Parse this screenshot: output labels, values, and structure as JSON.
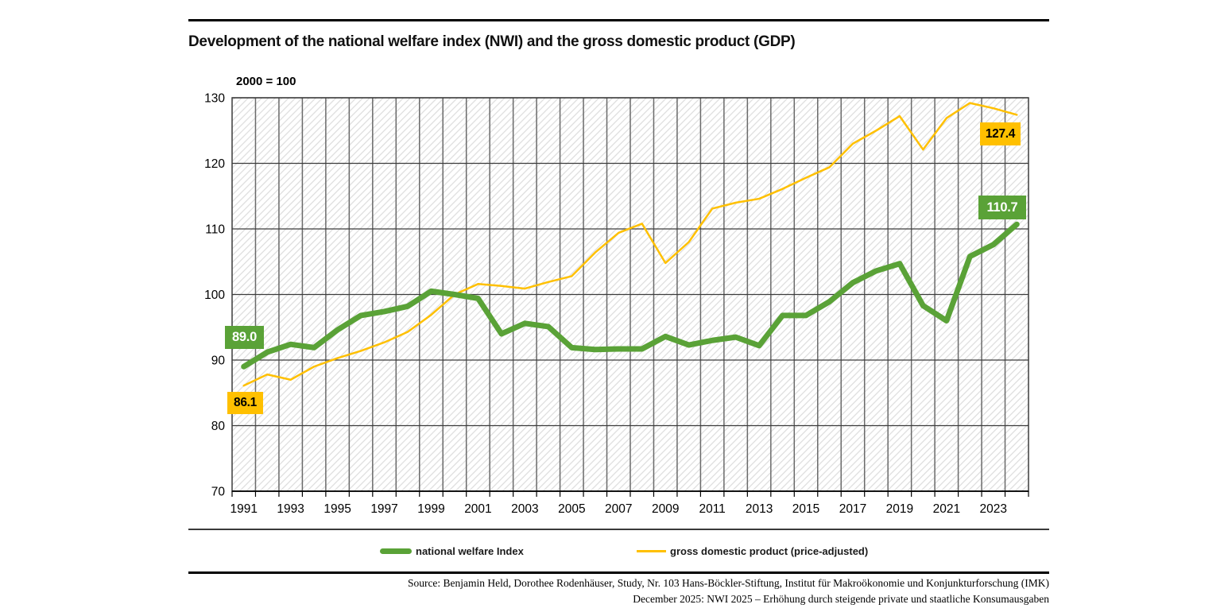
{
  "header": {
    "title": "Development of the national welfare index (NWI) and the gross domestic product (GDP)"
  },
  "colors": {
    "nwi_green": "#5AA237",
    "gdp_gold": "#FFC000",
    "grid_vertical": "#6a6a6a",
    "grid_horizontal": "#3c3c3c",
    "hatch": "#dcdcdc"
  },
  "chart_data": {
    "type": "line",
    "title": "Development of the national welfare index (NWI) and the gross domestic product (GDP)",
    "index_note": "2000 = 100",
    "xlabel": "",
    "ylabel": "",
    "ylim": [
      70,
      130
    ],
    "yticks": [
      70,
      80,
      90,
      100,
      110,
      120,
      130
    ],
    "grid": "on",
    "legend_position": "bottom",
    "x": [
      1991,
      1992,
      1993,
      1994,
      1995,
      1996,
      1997,
      1998,
      1999,
      2000,
      2001,
      2002,
      2003,
      2004,
      2005,
      2006,
      2007,
      2008,
      2009,
      2010,
      2011,
      2012,
      2013,
      2014,
      2015,
      2016,
      2017,
      2018,
      2019,
      2020,
      2021,
      2022,
      2023,
      2024
    ],
    "x_tick_labels": [
      "1991",
      "1993",
      "1995",
      "1997",
      "1999",
      "2001",
      "2003",
      "2005",
      "2007",
      "2009",
      "2011",
      "2013",
      "2015",
      "2017",
      "2019",
      "2021",
      "2023"
    ],
    "series": [
      {
        "name": "national welfare Index",
        "color": "#5AA237",
        "stroke_width": 7,
        "values": [
          89.0,
          91.2,
          92.4,
          91.9,
          94.6,
          96.8,
          97.4,
          98.2,
          100.5,
          100.0,
          99.4,
          94.0,
          95.6,
          95.1,
          91.9,
          91.6,
          91.7,
          91.7,
          93.6,
          92.3,
          93.0,
          93.5,
          92.2,
          96.8,
          96.8,
          98.9,
          101.8,
          103.6,
          104.7,
          98.3,
          96.0,
          105.8,
          107.6,
          110.7
        ]
      },
      {
        "name": "gross domestic product (price-adjusted)",
        "color": "#FFC000",
        "stroke_width": 2.5,
        "values": [
          86.1,
          87.8,
          87.0,
          89.0,
          90.3,
          91.4,
          92.7,
          94.3,
          96.9,
          100.0,
          101.6,
          101.3,
          100.9,
          101.9,
          102.8,
          106.4,
          109.4,
          110.8,
          104.8,
          108.0,
          113.1,
          114.0,
          114.6,
          116.1,
          117.8,
          119.4,
          123.0,
          125.0,
          127.2,
          122.1,
          126.9,
          129.2,
          128.4,
          127.4
        ]
      }
    ],
    "labels": {
      "nwi_start": "89.0",
      "gdp_start": "86.1",
      "nwi_end": "110.7",
      "gdp_end": "127.4"
    }
  },
  "legend": {
    "nwi": "national welfare Index",
    "gdp": "gross domestic product (price-adjusted)"
  },
  "footer": {
    "line1": "Source: Benjamin Held, Dorothee Rodenhäuser, Study, Nr. 103 Hans-Böckler-Stiftung, Institut für Makroökonomie und Konjunkturforschung (IMK)",
    "line2": "December 2025: NWI 2025 – Erhöhung durch steigende private und staatliche Konsumausgaben"
  }
}
